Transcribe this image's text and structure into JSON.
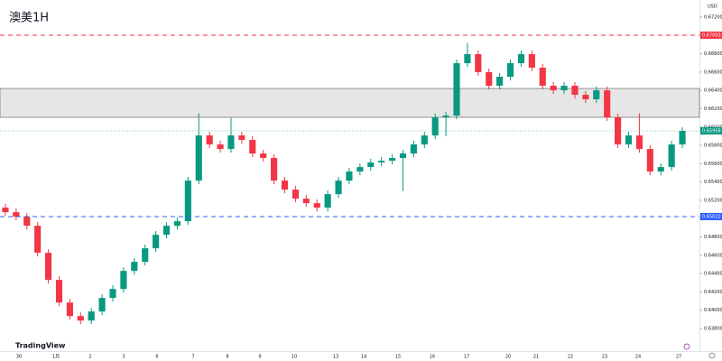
{
  "chart_data": {
    "type": "candlestick",
    "title": "澳美1H",
    "currency": "USD",
    "brand": "TradingView",
    "categories": [
      "30",
      "1月",
      "2",
      "3",
      "6",
      "7",
      "8",
      "9",
      "10",
      "13",
      "14",
      "15",
      "16",
      "17",
      "20",
      "21",
      "22",
      "23",
      "24",
      "27"
    ],
    "up_color": "#089981",
    "down_color": "#f23645",
    "open": [
      0.6512,
      0.6507,
      0.65021,
      0.64922,
      0.64627,
      0.64331,
      0.64084,
      0.63936,
      0.63887,
      0.63986,
      0.64134,
      0.64232,
      0.64429,
      0.64528,
      0.64676,
      0.64824,
      0.64922,
      0.64972,
      0.65415,
      0.65908,
      0.6581,
      0.6576,
      0.65908,
      0.65859,
      0.65711,
      0.65662,
      0.65415,
      0.65317,
      0.65218,
      0.65169,
      0.6512,
      0.65267,
      0.65415,
      0.65514,
      0.65563,
      0.65613,
      0.65632,
      0.65662,
      0.65711,
      0.6581,
      0.65908,
      0.66106,
      0.66125,
      0.66697,
      0.66796,
      0.66599,
      0.66451,
      0.66549,
      0.66697,
      0.66796,
      0.66648,
      0.66451,
      0.66401,
      0.66451,
      0.66352,
      0.66303,
      0.66401,
      0.66106,
      0.6581,
      0.65908,
      0.6576,
      0.65514,
      0.65563,
      0.6581
    ],
    "high": [
      0.6516,
      0.6511,
      0.65061,
      0.64962,
      0.64667,
      0.64371,
      0.64124,
      0.63976,
      0.64026,
      0.64174,
      0.64272,
      0.64469,
      0.64568,
      0.64716,
      0.64864,
      0.64962,
      0.65012,
      0.65455,
      0.6615,
      0.65948,
      0.6585,
      0.661,
      0.65948,
      0.65899,
      0.65751,
      0.65702,
      0.65455,
      0.65357,
      0.65258,
      0.65209,
      0.65307,
      0.65455,
      0.65554,
      0.65603,
      0.65653,
      0.65672,
      0.65702,
      0.65751,
      0.6585,
      0.65948,
      0.66146,
      0.66165,
      0.66737,
      0.6692,
      0.66836,
      0.66639,
      0.66589,
      0.66737,
      0.66836,
      0.66836,
      0.66688,
      0.66491,
      0.66491,
      0.66491,
      0.66392,
      0.66441,
      0.66441,
      0.66146,
      0.65948,
      0.6615,
      0.658,
      0.65603,
      0.6585,
      0.65998
    ],
    "low": [
      0.6503,
      0.64981,
      0.64882,
      0.64587,
      0.64291,
      0.64044,
      0.63896,
      0.63847,
      0.63847,
      0.63946,
      0.64094,
      0.64192,
      0.64389,
      0.64488,
      0.64636,
      0.64784,
      0.64882,
      0.64932,
      0.65375,
      0.6577,
      0.6572,
      0.6572,
      0.65819,
      0.65671,
      0.65622,
      0.65375,
      0.65277,
      0.65178,
      0.65129,
      0.6508,
      0.6508,
      0.65227,
      0.65375,
      0.65474,
      0.65523,
      0.65573,
      0.65592,
      0.653,
      0.65671,
      0.6577,
      0.65868,
      0.659,
      0.66085,
      0.66657,
      0.66559,
      0.66411,
      0.66411,
      0.66509,
      0.66657,
      0.66608,
      0.66411,
      0.66361,
      0.66361,
      0.66312,
      0.66263,
      0.66263,
      0.66066,
      0.6577,
      0.6577,
      0.6572,
      0.65474,
      0.65474,
      0.65523,
      0.6577
    ],
    "close": [
      0.6507,
      0.65021,
      0.64922,
      0.64627,
      0.64331,
      0.64084,
      0.63936,
      0.63887,
      0.63986,
      0.64134,
      0.64232,
      0.64429,
      0.64528,
      0.64676,
      0.64824,
      0.64922,
      0.64972,
      0.65415,
      0.65908,
      0.6581,
      0.6576,
      0.65908,
      0.65859,
      0.65711,
      0.65662,
      0.65415,
      0.65317,
      0.65218,
      0.65169,
      0.6512,
      0.65267,
      0.65415,
      0.65514,
      0.65563,
      0.65613,
      0.65632,
      0.65662,
      0.65711,
      0.6581,
      0.65908,
      0.66106,
      0.66125,
      0.66697,
      0.66796,
      0.66599,
      0.66451,
      0.66549,
      0.66697,
      0.66796,
      0.66648,
      0.66451,
      0.66401,
      0.66451,
      0.66352,
      0.66303,
      0.66401,
      0.66106,
      0.6581,
      0.65908,
      0.6576,
      0.65514,
      0.65563,
      0.6581,
      0.65958
    ],
    "ylim": [
      0.63544,
      0.67387
    ],
    "yticks": [
      {
        "value": 0.672,
        "label": "0.67200"
      },
      {
        "value": 0.67,
        "label": "0.67000"
      },
      {
        "value": 0.668,
        "label": "0.66800"
      },
      {
        "value": 0.666,
        "label": "0.66600"
      },
      {
        "value": 0.664,
        "label": "0.66400"
      },
      {
        "value": 0.662,
        "label": "0.66200"
      },
      {
        "value": 0.66,
        "label": "0.66000"
      },
      {
        "value": 0.658,
        "label": "0.65800"
      },
      {
        "value": 0.656,
        "label": "0.65600"
      },
      {
        "value": 0.654,
        "label": "0.65400"
      },
      {
        "value": 0.652,
        "label": "0.65200"
      },
      {
        "value": 0.65,
        "label": "0.65000"
      },
      {
        "value": 0.648,
        "label": "0.64800"
      },
      {
        "value": 0.646,
        "label": "0.64600"
      },
      {
        "value": 0.644,
        "label": "0.64400"
      },
      {
        "value": 0.642,
        "label": "0.64200"
      },
      {
        "value": 0.64,
        "label": "0.64000"
      },
      {
        "value": 0.638,
        "label": "0.63800"
      }
    ],
    "hlines": [
      {
        "value": 0.67003,
        "label": "0.67003",
        "color": "#f23645"
      },
      {
        "value": 0.65022,
        "label": "0.65022",
        "color": "#2962ff"
      }
    ],
    "zone": {
      "from": 0.66106,
      "to": 0.66421,
      "color": "#e6e6e6"
    },
    "last_price": {
      "value": 0.65958,
      "label": "0.65958",
      "color": "#089981"
    }
  }
}
